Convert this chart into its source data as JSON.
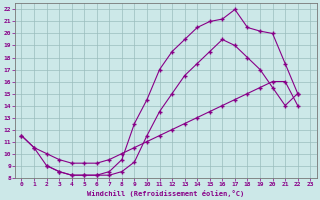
{
  "xlabel": "Windchill (Refroidissement éolien,°C)",
  "background_color": "#cce8e8",
  "line_color": "#880088",
  "xlim": [
    -0.5,
    23.5
  ],
  "ylim": [
    8,
    22.5
  ],
  "xticks": [
    0,
    1,
    2,
    3,
    4,
    5,
    6,
    7,
    8,
    9,
    10,
    11,
    12,
    13,
    14,
    15,
    16,
    17,
    18,
    19,
    20,
    21,
    22,
    23
  ],
  "yticks": [
    8,
    9,
    10,
    11,
    12,
    13,
    14,
    15,
    16,
    17,
    18,
    19,
    20,
    21,
    22
  ],
  "line1_x": [
    0,
    1,
    2,
    3,
    4,
    5,
    6,
    7,
    8,
    9,
    10,
    11,
    12,
    13,
    14,
    15,
    16,
    17,
    18,
    19,
    20,
    21,
    22
  ],
  "line1_y": [
    11.5,
    10.5,
    9.0,
    8.5,
    8.2,
    8.2,
    8.2,
    8.5,
    9.5,
    12.5,
    14.5,
    17.0,
    18.5,
    19.5,
    20.5,
    21.0,
    21.2,
    22.0,
    20.5,
    20.2,
    20.0,
    17.5,
    15.0
  ],
  "line2_x": [
    2,
    3,
    4,
    5,
    6,
    7,
    8,
    9,
    10,
    11,
    12,
    13,
    14,
    15,
    16,
    17,
    18,
    19,
    20,
    21,
    22
  ],
  "line2_y": [
    9.0,
    8.5,
    8.2,
    8.2,
    8.2,
    8.2,
    8.5,
    9.3,
    11.5,
    13.5,
    15.0,
    16.5,
    17.5,
    18.5,
    19.5,
    19.0,
    18.0,
    17.0,
    15.5,
    14.0,
    15.0
  ],
  "line3_x": [
    0,
    1,
    2,
    3,
    4,
    5,
    6,
    7,
    8,
    9,
    10,
    11,
    12,
    13,
    14,
    15,
    16,
    17,
    18,
    19,
    20,
    21,
    22
  ],
  "line3_y": [
    11.5,
    10.5,
    10.0,
    9.5,
    9.2,
    9.2,
    9.2,
    9.5,
    10.0,
    10.5,
    11.0,
    11.5,
    12.0,
    12.5,
    13.0,
    13.5,
    14.0,
    14.5,
    15.0,
    15.5,
    16.0,
    16.0,
    14.0
  ]
}
